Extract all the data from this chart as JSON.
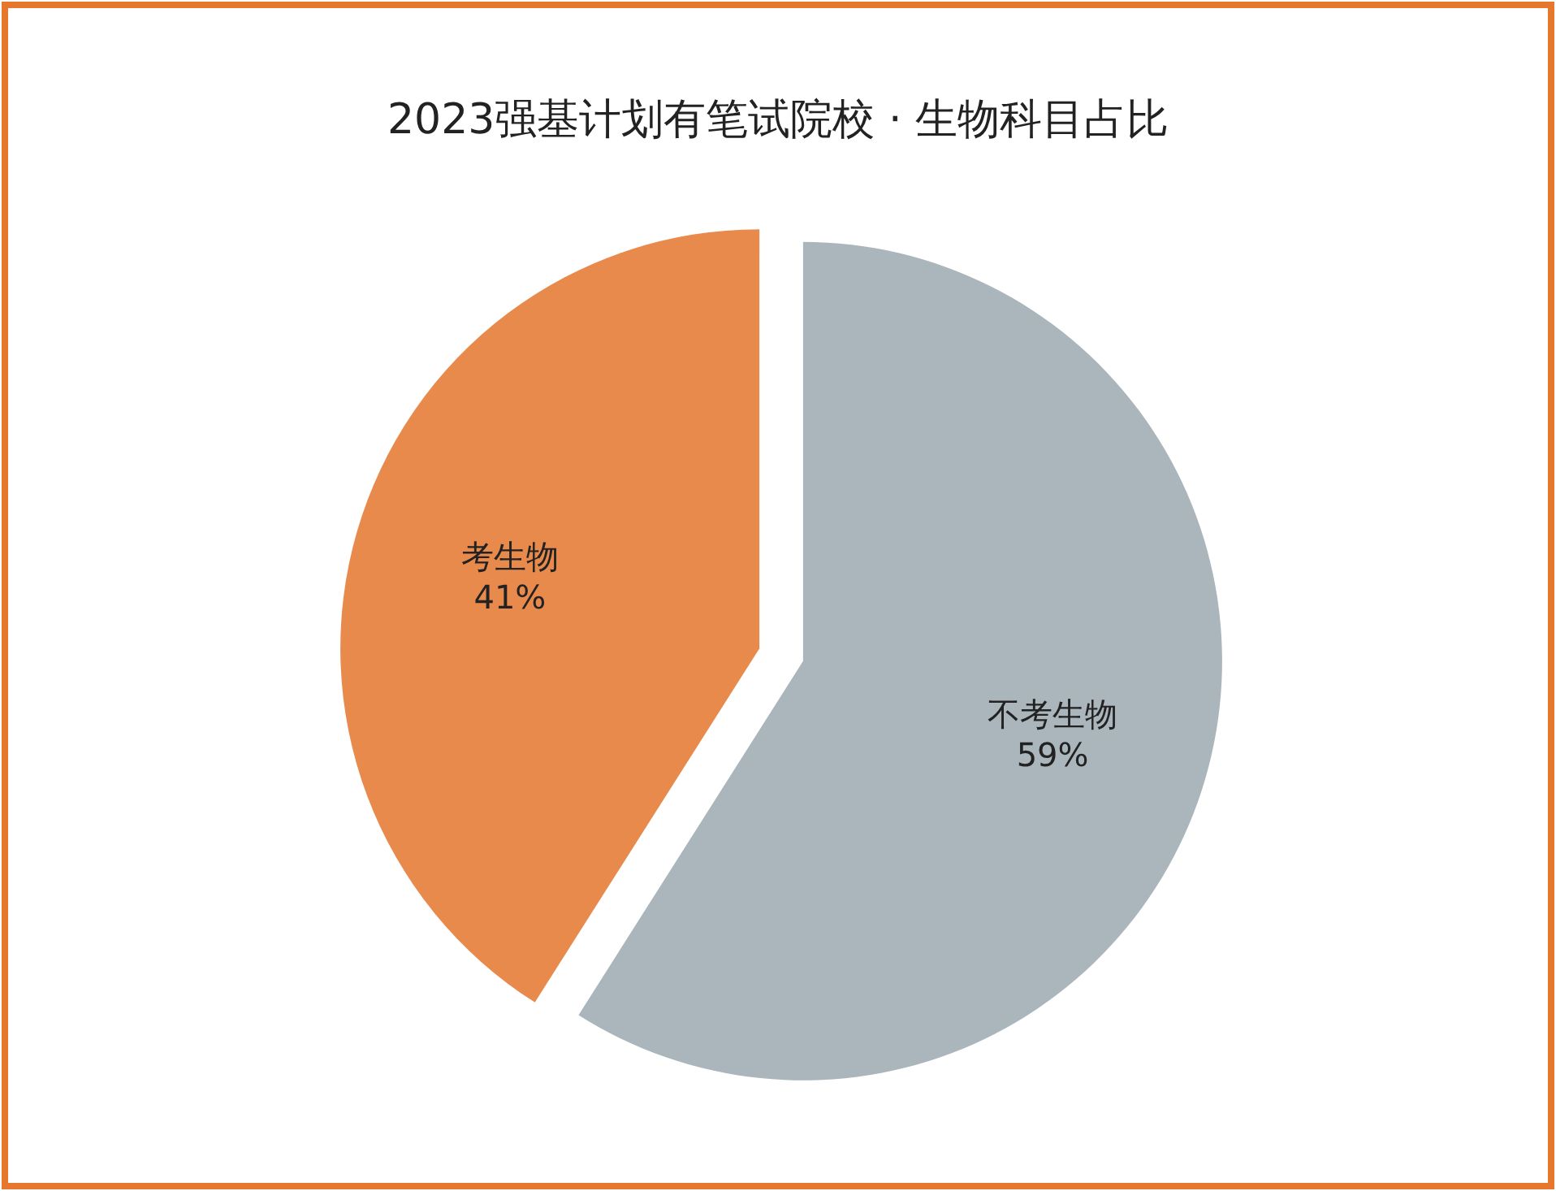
{
  "chart_data": {
    "type": "pie",
    "title": "2023强基计划有笔试院校 · 生物科目占比",
    "categories": [
      "不考生物",
      "考生物"
    ],
    "values": [
      59,
      41
    ],
    "colors": [
      "#aab5bc",
      "#e98a4d"
    ],
    "value_labels": [
      "59%",
      "41%"
    ]
  }
}
